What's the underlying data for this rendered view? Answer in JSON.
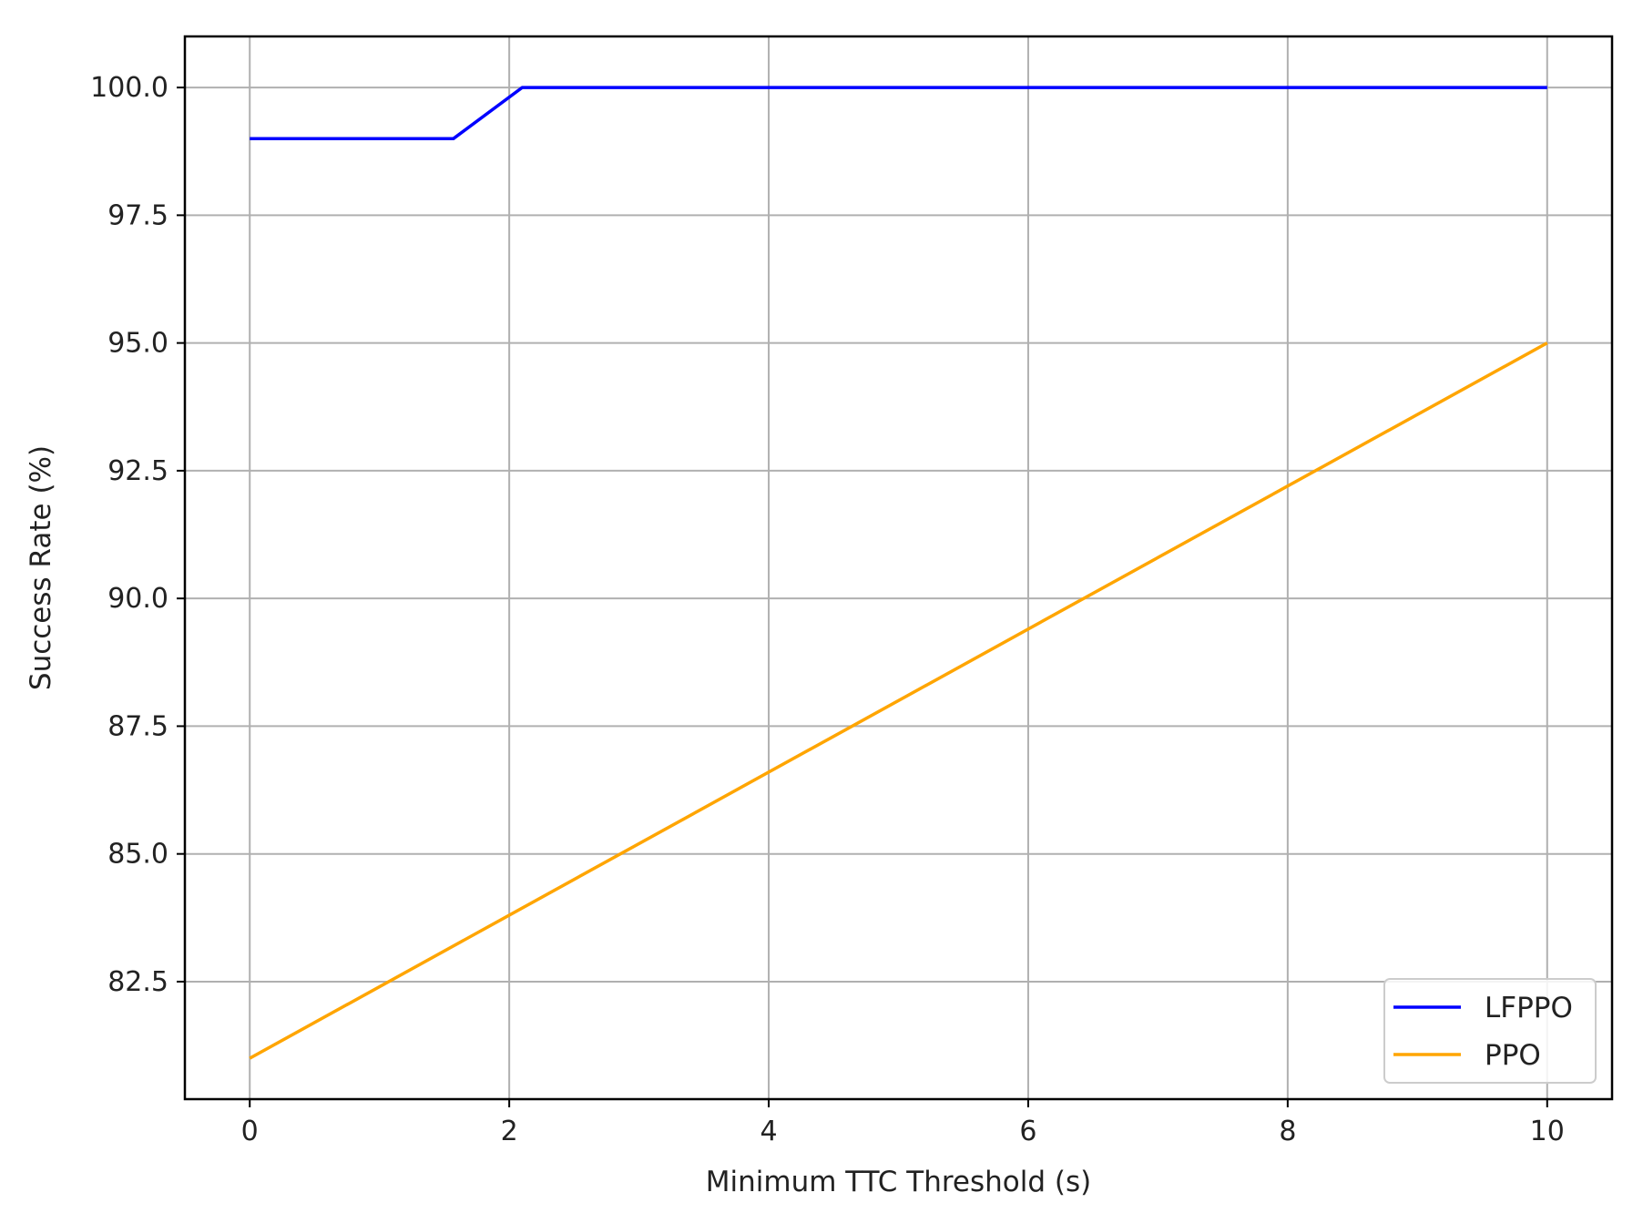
{
  "chart_data": {
    "type": "line",
    "title": "",
    "xlabel": "Minimum TTC Threshold (s)",
    "ylabel": "Success Rate (%)",
    "xlim": [
      -0.5,
      10.5
    ],
    "ylim": [
      80.2,
      101.0
    ],
    "xticks": [
      0,
      2,
      4,
      6,
      8,
      10
    ],
    "xtick_labels": [
      "0",
      "2",
      "4",
      "6",
      "8",
      "10"
    ],
    "yticks": [
      82.5,
      85.0,
      87.5,
      90.0,
      92.5,
      95.0,
      97.5,
      100.0
    ],
    "ytick_labels": [
      "82.5",
      "85.0",
      "87.5",
      "90.0",
      "92.5",
      "95.0",
      "97.5",
      "100.0"
    ],
    "grid": true,
    "legend_position": "bottom-right",
    "series": [
      {
        "name": "LFPPO",
        "color": "#0000ff",
        "points": [
          [
            0,
            99.0
          ],
          [
            1.57,
            99.0
          ],
          [
            2.1,
            100.0
          ],
          [
            10,
            100.0
          ]
        ]
      },
      {
        "name": "PPO",
        "color": "#ffa500",
        "points": [
          [
            0,
            81.0
          ],
          [
            10,
            95.0
          ]
        ]
      }
    ]
  }
}
